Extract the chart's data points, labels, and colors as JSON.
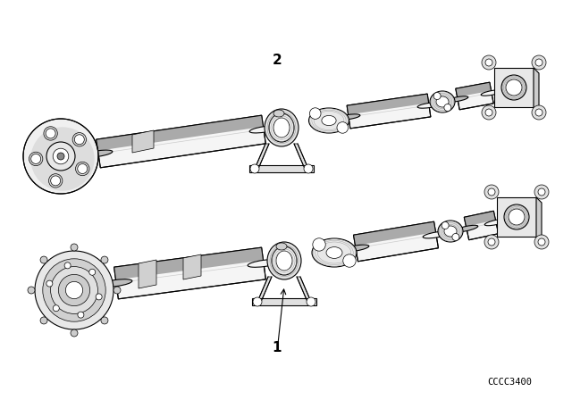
{
  "background_color": "#ffffff",
  "part_label_1": "1",
  "part_label_2": "2",
  "catalog_number": "CCCC3400",
  "label_fontsize": 11,
  "catalog_fontsize": 7.5,
  "line_color": "#000000",
  "lw": 0.8,
  "dlw": 0.5,
  "shaft_color": "#ffffff",
  "shadow_color": "#cccccc",
  "dark_color": "#888888"
}
